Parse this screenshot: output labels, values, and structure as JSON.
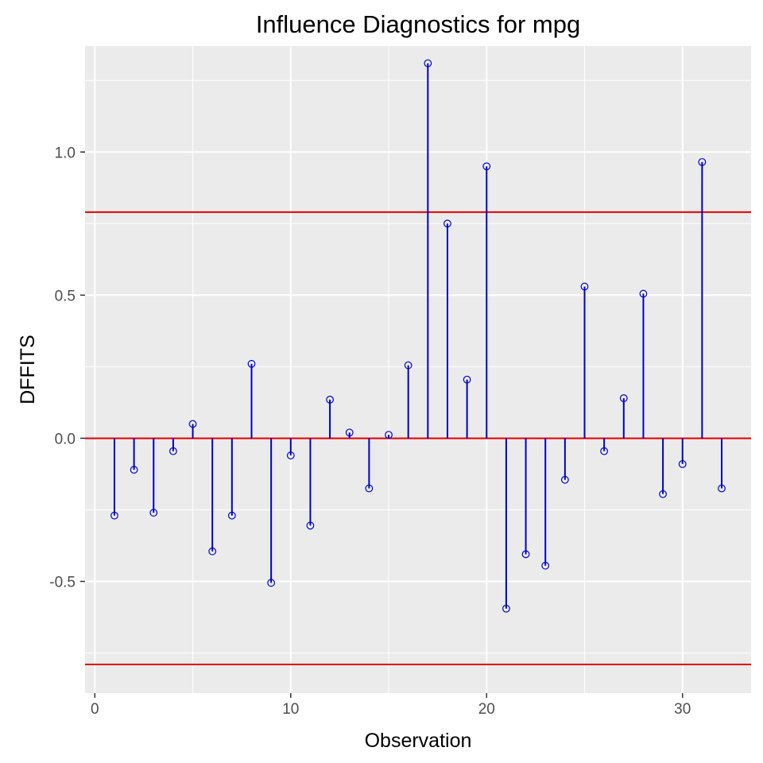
{
  "chart_data": {
    "type": "scatter",
    "title": "Influence Diagnostics for mpg",
    "xlabel": "Observation",
    "ylabel": "DFFITS",
    "xlim": [
      -0.5,
      33.5
    ],
    "ylim": [
      -0.89,
      1.37
    ],
    "x_ticks": [
      0,
      10,
      20,
      30
    ],
    "x_tick_labels": [
      "0",
      "10",
      "20",
      "30"
    ],
    "y_ticks": [
      -0.5,
      0.0,
      0.5,
      1.0
    ],
    "y_tick_labels": [
      "-0.5",
      "0.0",
      "0.5",
      "1.0"
    ],
    "x_minor_ticks": [
      5,
      15,
      25
    ],
    "y_minor_ticks": [
      -0.75,
      -0.25,
      0.25,
      0.75,
      1.25
    ],
    "grid": true,
    "reference_lines": [
      0.79,
      0.0,
      -0.79
    ],
    "x": [
      1,
      2,
      3,
      4,
      5,
      6,
      7,
      8,
      9,
      10,
      11,
      12,
      13,
      14,
      15,
      16,
      17,
      18,
      19,
      20,
      21,
      22,
      23,
      24,
      25,
      26,
      27,
      28,
      29,
      30,
      31,
      32
    ],
    "y": [
      -0.27,
      -0.11,
      -0.26,
      -0.045,
      0.05,
      -0.395,
      -0.27,
      0.26,
      -0.505,
      -0.06,
      -0.305,
      0.135,
      0.02,
      -0.175,
      0.012,
      0.255,
      1.31,
      0.75,
      0.205,
      0.95,
      -0.595,
      -0.405,
      -0.445,
      -0.145,
      0.53,
      -0.045,
      0.14,
      0.505,
      -0.195,
      -0.09,
      0.965,
      -0.175
    ]
  },
  "colors": {
    "panel_background": "#ebebeb",
    "grid": "#ffffff",
    "stem": "#0000cd",
    "point": "#0000cd",
    "reference_line": "#e60000"
  }
}
